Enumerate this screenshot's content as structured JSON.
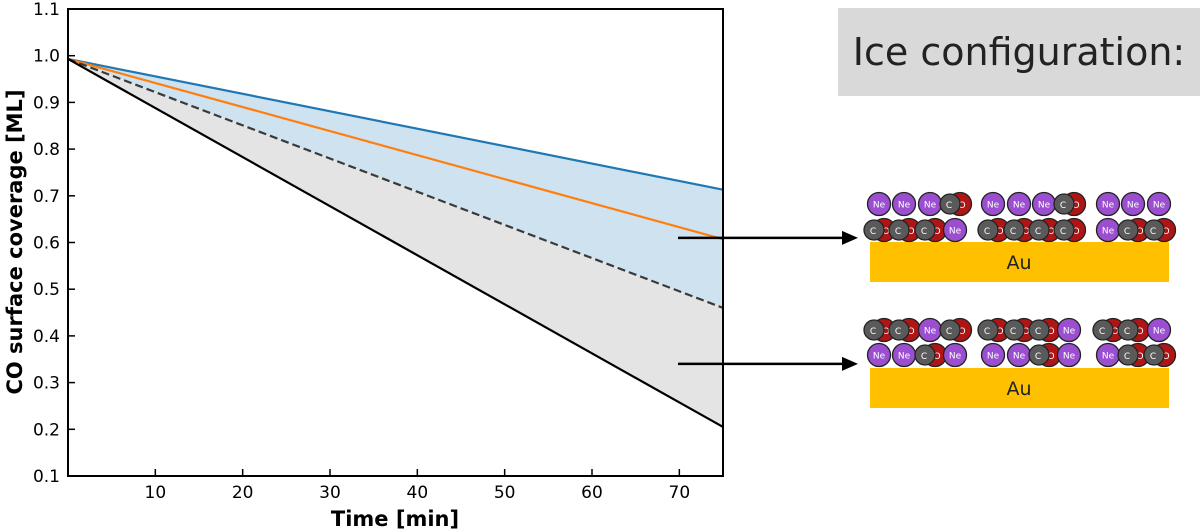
{
  "chart_data": {
    "type": "line",
    "xlabel": "Time [min]",
    "ylabel": "CO surface coverage [ML]",
    "xlim": [
      0,
      75
    ],
    "ylim": [
      0.1,
      1.1
    ],
    "xticks": [
      10,
      20,
      30,
      40,
      50,
      60,
      70
    ],
    "yticks": [
      0.1,
      0.2,
      0.3,
      0.4,
      0.5,
      0.6,
      0.7,
      0.8,
      0.9,
      1.0,
      1.1
    ],
    "xtick_labels": [
      "10",
      "20",
      "30",
      "40",
      "50",
      "60",
      "70"
    ],
    "ytick_labels": [
      "0.1",
      "0.2",
      "0.3",
      "0.4",
      "0.5",
      "0.6",
      "0.7",
      "0.8",
      "0.9",
      "1.0",
      "1.1"
    ],
    "series": [
      {
        "color": "#1f77b4",
        "style": "solid",
        "x": [
          0,
          75
        ],
        "y": [
          0.993,
          0.713
        ]
      },
      {
        "color": "#ff7f0e",
        "style": "solid",
        "x": [
          0,
          75
        ],
        "y": [
          0.993,
          0.607
        ]
      },
      {
        "color": "#3a3a3a",
        "style": "dashed",
        "x": [
          0,
          75
        ],
        "y": [
          0.993,
          0.46
        ]
      },
      {
        "color": "#000000",
        "style": "solid",
        "x": [
          0,
          75
        ],
        "y": [
          0.993,
          0.205
        ]
      }
    ],
    "shaded_regions": [
      {
        "color": "#cfe2f0",
        "between": [
          "blue",
          "dashed"
        ]
      },
      {
        "color": "#e4e4e4",
        "between": [
          "dashed",
          "black"
        ]
      }
    ],
    "grid": false
  },
  "panel": {
    "title": "Ice configuration:",
    "configurations": [
      {
        "substrate": "Au",
        "arrow_y_value": 0.61,
        "top_layer": [
          "Ne",
          "Ne",
          "Ne",
          "CO",
          "Ne",
          "Ne",
          "Ne",
          "CO",
          "Ne",
          "Ne",
          "Ne"
        ],
        "bottom_layer": [
          "CO",
          "CO",
          "CO",
          "Ne",
          "CO",
          "CO",
          "CO",
          "CO",
          "Ne",
          "CO",
          "CO"
        ]
      },
      {
        "substrate": "Au",
        "arrow_y_value": 0.34,
        "top_layer": [
          "CO",
          "CO",
          "Ne",
          "CO",
          "CO",
          "CO",
          "CO",
          "Ne",
          "CO",
          "CO",
          "Ne"
        ],
        "bottom_layer": [
          "Ne",
          "Ne",
          "CO",
          "Ne",
          "Ne",
          "Ne",
          "CO",
          "Ne",
          "Ne",
          "CO",
          "CO"
        ]
      }
    ]
  },
  "colors": {
    "neon": "#9b4fd0",
    "oxygen": "#b01515",
    "carbon": "#5a5a5a",
    "gold": "#ffc000",
    "panel_bg": "#d9d9d9"
  }
}
